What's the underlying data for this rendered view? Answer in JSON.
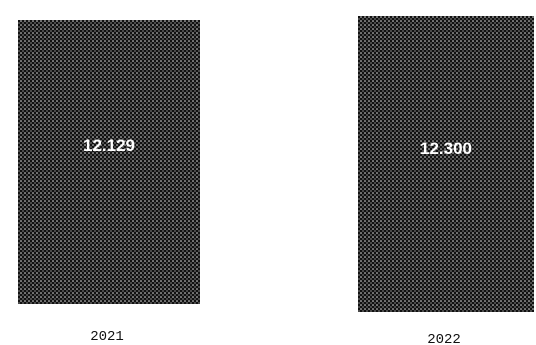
{
  "chart_data": {
    "type": "bar",
    "categories": [
      "2021",
      "2022"
    ],
    "values": [
      12129,
      12300
    ],
    "value_labels": [
      "12.129",
      "12.300"
    ],
    "title": "",
    "xlabel": "",
    "ylabel": "",
    "grid": false,
    "legend": "none",
    "colors": {
      "bar": "#111111",
      "dots": "#f2f2f2",
      "value_label": "#ffffff",
      "category_label": "#111111",
      "background": "#ffffff"
    }
  }
}
